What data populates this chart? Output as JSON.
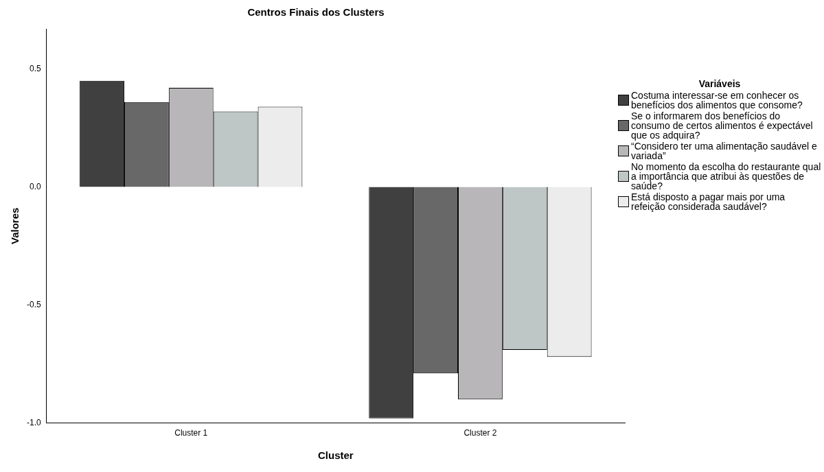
{
  "chart_data": {
    "type": "bar",
    "title": "Centros Finais dos Clusters",
    "xlabel": "Cluster",
    "ylabel": "Valores",
    "legend_title": "Variáveis",
    "legend": "right",
    "grid": false,
    "categories": [
      "Cluster 1",
      "Cluster 2"
    ],
    "ylim": [
      -1.0,
      0.67
    ],
    "yticks": [
      {
        "value": -1,
        "label": "-1.0"
      },
      -0.5,
      {
        "value": 0,
        "label": "0.0"
      },
      0.5
    ],
    "series": [
      {
        "name": "Costuma interessar-se em conhecer os benefícios dos alimentos que consome?",
        "color": "#404040",
        "values": [
          0.45,
          -0.98
        ]
      },
      {
        "name": "Se o informarem dos benefícios do consumo de certos alimentos é expectável que os adquira?",
        "color": "#686868",
        "values": [
          0.36,
          -0.79
        ]
      },
      {
        "name": "“Considero ter uma alimentação saudável e variada”",
        "color": "#b8b6b8",
        "values": [
          0.42,
          -0.9
        ]
      },
      {
        "name": "No momento da escolha do restaurante qual a importância que atribui às questões de saúde?",
        "color": "#bec6c6",
        "values": [
          0.32,
          -0.69
        ]
      },
      {
        "name": "Está disposto a pagar mais por uma refeição considerada saudável?",
        "color": "#ececec",
        "values": [
          0.34,
          -0.72
        ]
      }
    ]
  }
}
